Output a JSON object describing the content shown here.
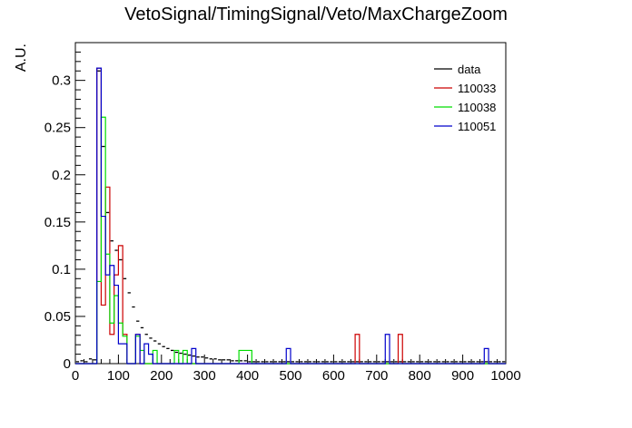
{
  "chart_data": {
    "type": "histogram",
    "title": "VetoSignal/TimingSignal/Veto/MaxChargeZoom",
    "ylabel": "A.U.",
    "xlabel": "",
    "xlim": [
      0,
      1000
    ],
    "ylim": [
      0,
      0.34
    ],
    "bin_width": 10,
    "x_ticks": [
      "0",
      "100",
      "200",
      "300",
      "400",
      "500",
      "600",
      "700",
      "800",
      "900",
      "1000"
    ],
    "y_ticks": [
      "0",
      "0.05",
      "0.1",
      "0.15",
      "0.2",
      "0.25",
      "0.3"
    ],
    "grid": false,
    "legend_position": "top-right",
    "series": [
      {
        "name": "data",
        "color": "#000000",
        "style": "markers",
        "bins_start": 0,
        "values": [
          0.002,
          0.003,
          0.002,
          0.005,
          0.004,
          0.31,
          0.23,
          0.16,
          0.13,
          0.12,
          0.11,
          0.09,
          0.075,
          0.06,
          0.045,
          0.038,
          0.031,
          0.027,
          0.024,
          0.021,
          0.018,
          0.016,
          0.014,
          0.012,
          0.011,
          0.01,
          0.009,
          0.008,
          0.007,
          0.007,
          0.006,
          0.005,
          0.005,
          0.004,
          0.004,
          0.004,
          0.003,
          0.003,
          0.003,
          0.003,
          0.002,
          0.002,
          0.002,
          0.002,
          0.002,
          0.002,
          0.002,
          0.002,
          0.002,
          0.002,
          0.002,
          0.002,
          0.002,
          0.002,
          0.002,
          0.002,
          0.002,
          0.002,
          0.002,
          0.002,
          0.002,
          0.002,
          0.002,
          0.002,
          0.002,
          0.002,
          0.002,
          0.002,
          0.002,
          0.002,
          0.002,
          0.002,
          0.002,
          0.002,
          0.002,
          0.002,
          0.002,
          0.002,
          0.002,
          0.002,
          0.002,
          0.002,
          0.002,
          0.002,
          0.002,
          0.002,
          0.002,
          0.002,
          0.002,
          0.002,
          0.002,
          0.002,
          0.002,
          0.002,
          0.002,
          0.002,
          0.002,
          0.002,
          0.002,
          0.002
        ]
      },
      {
        "name": "110033",
        "color": "#cc0000",
        "style": "step",
        "bins_start": 0,
        "values": [
          0,
          0,
          0,
          0,
          0,
          0.313,
          0.062,
          0.187,
          0.031,
          0.094,
          0.125,
          0.031,
          0,
          0,
          0.031,
          0,
          0,
          0,
          0,
          0,
          0,
          0,
          0,
          0,
          0,
          0,
          0,
          0,
          0,
          0,
          0,
          0,
          0,
          0,
          0,
          0,
          0,
          0,
          0,
          0,
          0,
          0,
          0,
          0,
          0,
          0,
          0,
          0,
          0,
          0,
          0,
          0,
          0,
          0,
          0,
          0,
          0,
          0,
          0,
          0,
          0,
          0,
          0,
          0,
          0,
          0.031,
          0,
          0,
          0,
          0,
          0,
          0,
          0,
          0,
          0,
          0.031,
          0,
          0,
          0,
          0,
          0,
          0,
          0,
          0,
          0,
          0,
          0,
          0,
          0,
          0,
          0,
          0,
          0,
          0,
          0,
          0,
          0,
          0,
          0,
          0
        ]
      },
      {
        "name": "110038",
        "color": "#00dd00",
        "style": "step",
        "bins_start": 0,
        "values": [
          0,
          0,
          0,
          0,
          0,
          0.087,
          0.261,
          0.116,
          0.043,
          0.072,
          0.043,
          0.029,
          0,
          0,
          0.029,
          0.014,
          0,
          0,
          0.014,
          0,
          0,
          0,
          0,
          0.014,
          0,
          0.014,
          0,
          0,
          0,
          0,
          0,
          0,
          0,
          0,
          0,
          0,
          0,
          0,
          0.014,
          0.014,
          0.014,
          0,
          0,
          0,
          0,
          0,
          0,
          0,
          0,
          0,
          0,
          0,
          0,
          0,
          0,
          0,
          0,
          0,
          0,
          0,
          0,
          0,
          0,
          0,
          0,
          0,
          0,
          0,
          0,
          0,
          0,
          0,
          0,
          0,
          0,
          0,
          0,
          0,
          0,
          0,
          0,
          0,
          0,
          0,
          0,
          0,
          0,
          0,
          0,
          0,
          0,
          0,
          0,
          0,
          0,
          0,
          0,
          0,
          0,
          0
        ]
      },
      {
        "name": "110051",
        "color": "#0000cc",
        "style": "step",
        "bins_start": 0,
        "values": [
          0,
          0,
          0,
          0,
          0,
          0.313,
          0.156,
          0.094,
          0.104,
          0.083,
          0.021,
          0.021,
          0,
          0,
          0.031,
          0,
          0.021,
          0.01,
          0,
          0,
          0,
          0,
          0,
          0,
          0,
          0,
          0,
          0.016,
          0,
          0,
          0,
          0,
          0,
          0,
          0,
          0,
          0,
          0,
          0,
          0,
          0,
          0,
          0,
          0,
          0,
          0,
          0,
          0,
          0,
          0.016,
          0,
          0,
          0,
          0,
          0,
          0,
          0,
          0,
          0,
          0,
          0,
          0,
          0,
          0,
          0,
          0,
          0,
          0,
          0,
          0,
          0,
          0,
          0.031,
          0,
          0,
          0,
          0,
          0,
          0,
          0,
          0,
          0,
          0,
          0,
          0,
          0,
          0,
          0,
          0,
          0,
          0,
          0,
          0,
          0,
          0,
          0.016,
          0,
          0,
          0,
          0
        ]
      }
    ]
  }
}
